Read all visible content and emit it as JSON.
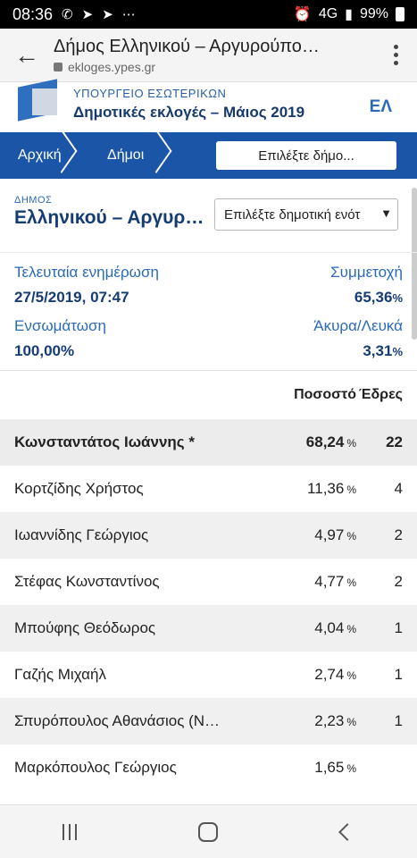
{
  "status_bar": {
    "time": "08:36",
    "signal_label": "4G",
    "battery": "99%"
  },
  "browser": {
    "page_title": "Δήμος Ελληνικού – Αργυρούπο…",
    "url": "ekloges.ypes.gr"
  },
  "header": {
    "ministry": "ΥΠΟΥΡΓΕΙΟ ΕΣΩΤΕΡΙΚΩΝ",
    "title": "Δημοτικές εκλογές – Μάιος 2019",
    "language": "ΕΛ"
  },
  "nav": {
    "home": "Αρχική",
    "municipalities": "Δήμοι",
    "select_municipality": "Επιλέξτε δήμο..."
  },
  "municipality": {
    "label": "ΔΗΜΟΣ",
    "name": "Ελληνικού – Αργυρ…",
    "unit_select": "Επιλέξτε δημοτική ενότ"
  },
  "stats": {
    "last_update_label": "Τελευταία ενημέρωση",
    "last_update_value": "27/5/2019, 07:47",
    "turnout_label": "Συμμετοχή",
    "turnout_value": "65,36",
    "integration_label": "Ενσωμάτωση",
    "integration_value": "100,00%",
    "invalid_label": "Άκυρα/Λευκά",
    "invalid_value": "3,31",
    "percent_sym": "%"
  },
  "results": {
    "header_pct": "Ποσοστό",
    "header_seats": "Έδρες",
    "pct_sym": "%",
    "rows": [
      {
        "name": "Κωνσταντάτος Ιωάννης *",
        "pct": "68,24",
        "seats": "22"
      },
      {
        "name": "Κορτζίδης Χρήστος",
        "pct": "11,36",
        "seats": "4"
      },
      {
        "name": "Ιωαννίδης Γεώργιος",
        "pct": "4,97",
        "seats": "2"
      },
      {
        "name": "Στέφας Κωνσταντίνος",
        "pct": "4,77",
        "seats": "2"
      },
      {
        "name": "Μπούφης Θεόδωρος",
        "pct": "4,04",
        "seats": "1"
      },
      {
        "name": "Γαζής Μιχαήλ",
        "pct": "2,74",
        "seats": "1"
      },
      {
        "name": "Σπυρόπουλος Αθανάσιος (Ν…",
        "pct": "2,23",
        "seats": "1"
      },
      {
        "name": "Μαρκόπουλος Γεώργιος",
        "pct": "1,65",
        "seats": ""
      }
    ]
  },
  "colors": {
    "nav_blue": "#1b55a8",
    "title_blue": "#163c74",
    "label_blue": "#2a6ab9"
  }
}
